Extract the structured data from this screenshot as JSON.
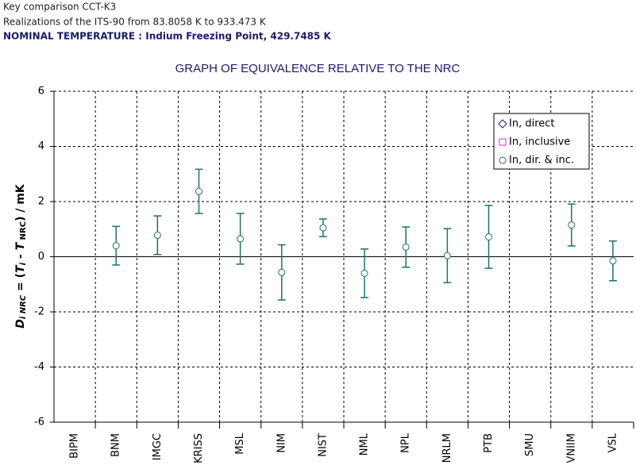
{
  "header": {
    "line1": "Key comparison CCT-K3",
    "line2": "Realizations of the ITS-90 from 83.8058 K to 933.473 K",
    "line3": "NOMINAL TEMPERATURE : Indium Freezing Point, 429.7485 K"
  },
  "chart_data": {
    "type": "errorbar",
    "title": "GRAPH OF EQUIVALENCE RELATIVE TO THE NRC",
    "ylabel": [
      "D",
      "i NRC",
      " = (",
      "T",
      "i",
      " - ",
      "T",
      " NRC",
      ") / mK"
    ],
    "categories": [
      "BIPM",
      "BNM",
      "IMGC",
      "KRISS",
      "MSL",
      "NIM",
      "NIST",
      "NML",
      "NPL",
      "NRLM",
      "PTB",
      "SMU",
      "VNIIM",
      "VSL"
    ],
    "series": [
      {
        "name": "In, direct",
        "color": "#1a1a6e",
        "marker": "diamond",
        "values": [
          null,
          null,
          null,
          null,
          null,
          null,
          null,
          null,
          null,
          null,
          null,
          null,
          null,
          null
        ]
      },
      {
        "name": "In, inclusive",
        "color": "#cc33cc",
        "marker": "square",
        "values": [
          null,
          null,
          null,
          null,
          null,
          null,
          null,
          null,
          null,
          null,
          null,
          null,
          null,
          null
        ]
      },
      {
        "name": "In, dir. & inc.",
        "color": "#207070",
        "marker": "circle",
        "values": [
          null,
          0.4,
          0.78,
          2.37,
          0.65,
          -0.57,
          1.05,
          -0.6,
          0.35,
          0.04,
          0.72,
          null,
          1.15,
          -0.15
        ],
        "errors": [
          null,
          0.7,
          0.7,
          0.8,
          0.92,
          1.0,
          0.32,
          0.88,
          0.73,
          0.98,
          1.14,
          null,
          0.76,
          0.72
        ]
      }
    ],
    "ylim": [
      -6,
      6
    ],
    "yticks": [
      -6,
      -4,
      -2,
      0,
      2,
      4,
      6
    ],
    "grid": true,
    "legend": "upper right"
  }
}
